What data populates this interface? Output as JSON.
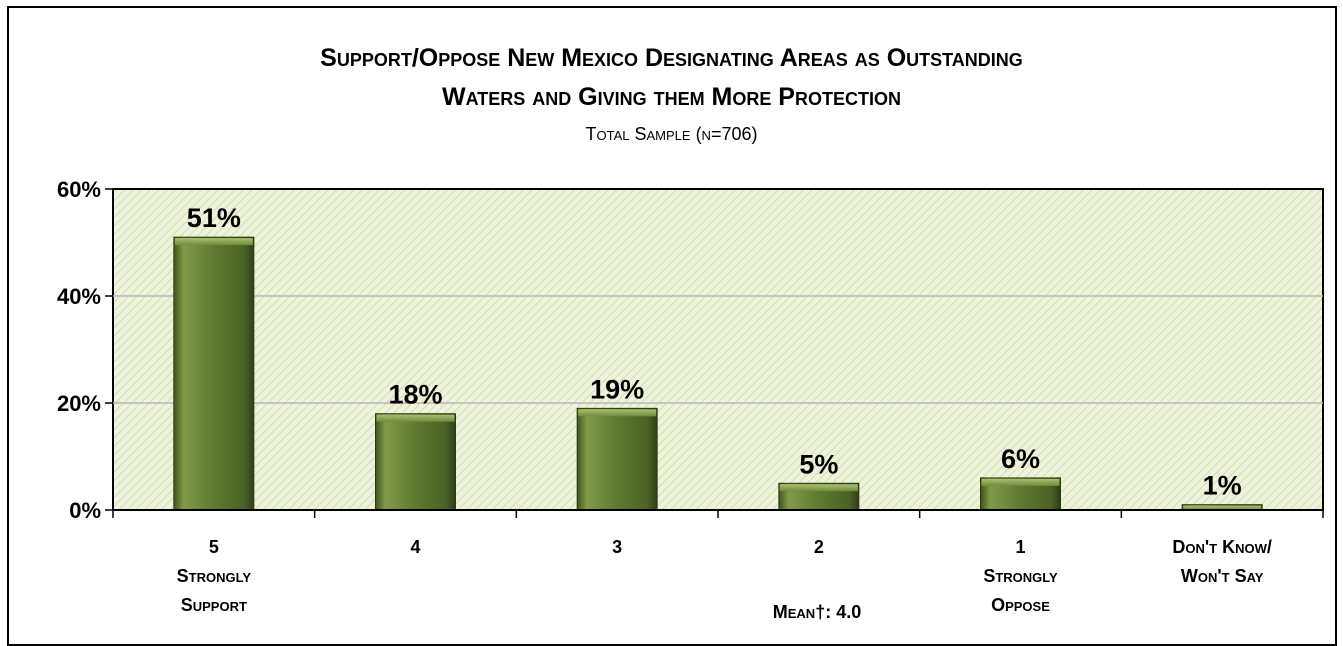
{
  "chart_data": {
    "type": "bar",
    "title_line1": "Support/Oppose New Mexico Designating Areas as Outstanding",
    "title_line2": "Waters and Giving them More Protection",
    "subtitle": "Total Sample (n=706)",
    "categories": [
      {
        "lines": [
          "5",
          "Strongly",
          "Support"
        ]
      },
      {
        "lines": [
          "4"
        ]
      },
      {
        "lines": [
          "3"
        ]
      },
      {
        "lines": [
          "2"
        ]
      },
      {
        "lines": [
          "1",
          "Strongly",
          "Oppose"
        ]
      },
      {
        "lines": [
          "Don't Know/",
          "Won't Say"
        ]
      }
    ],
    "values": [
      51,
      18,
      19,
      5,
      6,
      1
    ],
    "data_labels": [
      "51%",
      "18%",
      "19%",
      "5%",
      "6%",
      "1%"
    ],
    "y_ticks": [
      "0%",
      "20%",
      "40%",
      "60%"
    ],
    "y_tick_values": [
      0,
      20,
      40,
      60
    ],
    "ylim": [
      0,
      60
    ],
    "grid": true,
    "legend": "none",
    "annotation": "Mean†: 4.0",
    "colors": {
      "bar": "#5d7531",
      "bar_light": "#8ea65a",
      "bar_dark": "#3a4d1a",
      "plot_bg": "#eef3dc",
      "hatch": "#c9d8a6",
      "grid": "#b8b8b8"
    }
  }
}
